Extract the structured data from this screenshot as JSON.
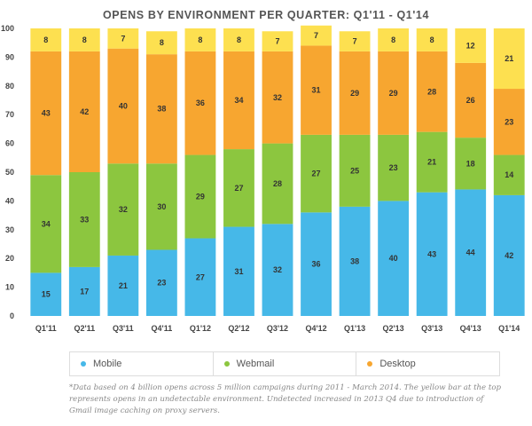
{
  "chart_data": {
    "type": "bar",
    "stacked": true,
    "title": "OPENS BY ENVIRONMENT PER QUARTER: Q1'11 - Q1'14",
    "categories": [
      "Q1'11",
      "Q2'11",
      "Q3'11",
      "Q4'11",
      "Q1'12",
      "Q2'12",
      "Q3'12",
      "Q4'12",
      "Q1'13",
      "Q2'13",
      "Q3'13",
      "Q4'13",
      "Q1'14"
    ],
    "ylim": [
      0,
      100
    ],
    "yticks": [
      0,
      10,
      20,
      30,
      40,
      50,
      60,
      70,
      80,
      90,
      100
    ],
    "grid": false,
    "legend_position": "bottom",
    "series": [
      {
        "name": "Mobile",
        "color": "#46b8e8",
        "values": [
          15,
          17,
          21,
          23,
          27,
          31,
          32,
          36,
          38,
          40,
          43,
          44,
          42
        ]
      },
      {
        "name": "Webmail",
        "color": "#8cc63f",
        "values": [
          34,
          33,
          32,
          30,
          29,
          27,
          28,
          27,
          25,
          23,
          21,
          18,
          14
        ]
      },
      {
        "name": "Desktop",
        "color": "#f7a630",
        "values": [
          43,
          42,
          40,
          38,
          36,
          34,
          32,
          31,
          29,
          29,
          28,
          26,
          23
        ]
      },
      {
        "values": [
          8,
          8,
          7,
          8,
          8,
          8,
          7,
          7,
          7,
          8,
          8,
          12,
          21
        ],
        "color": "#fde050"
      }
    ]
  },
  "footnote": "*Data based on 4 billion opens across 5 million campaigns during 2011 - March 2014. The yellow bar at the top represents opens in an undetectable environment. Undetected increased in 2013 Q4 due to introduction of Gmail image caching on proxy servers."
}
